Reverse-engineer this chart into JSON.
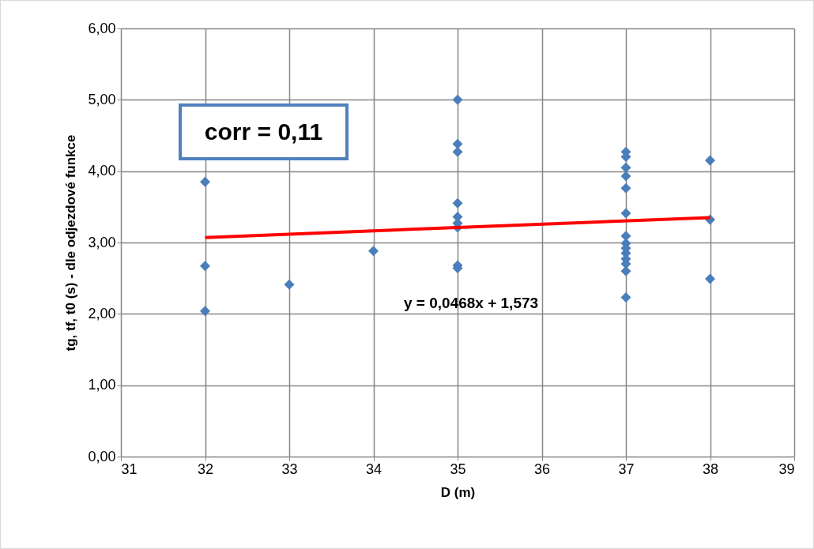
{
  "chart_data": {
    "type": "scatter",
    "xlabel": "D (m)",
    "ylabel": "tg, tf, t0 (s) - dle odjezdové funkce",
    "xlim": [
      31,
      39
    ],
    "xticks": [
      31,
      32,
      33,
      34,
      35,
      36,
      37,
      38,
      39
    ],
    "ylim": [
      0,
      6
    ],
    "yticks": [
      {
        "value": 0,
        "label": "0,00"
      },
      {
        "value": 1,
        "label": "1,00"
      },
      {
        "value": 2,
        "label": "2,00"
      },
      {
        "value": 3,
        "label": "3,00"
      },
      {
        "value": 4,
        "label": "4,00"
      },
      {
        "value": 5,
        "label": "5,00"
      },
      {
        "value": 6,
        "label": "6,00"
      }
    ],
    "grid": true,
    "series": [
      {
        "marker": "diamond",
        "color": "#4a7ebb",
        "x": [
          32,
          32,
          32,
          33,
          34,
          35,
          35,
          35,
          35,
          35,
          35,
          35,
          35,
          35,
          37,
          37,
          37,
          37,
          37,
          37,
          37,
          37,
          37,
          37,
          37,
          37,
          37,
          37,
          38,
          38,
          38
        ],
        "values": [
          3.85,
          2.67,
          2.04,
          2.41,
          2.88,
          5.0,
          4.38,
          4.27,
          3.55,
          3.36,
          3.27,
          3.21,
          2.68,
          2.64,
          4.27,
          4.2,
          4.05,
          3.93,
          3.76,
          3.41,
          3.09,
          2.99,
          2.92,
          2.85,
          2.77,
          2.7,
          2.6,
          2.23,
          4.15,
          3.32,
          2.49
        ]
      },
      {
        "type": "line",
        "color": "#ff0000",
        "x": [
          32,
          38
        ],
        "values": [
          3.07,
          3.35
        ]
      }
    ],
    "annotations": [
      "corr = 0,11",
      "y = 0,0468x + 1,573"
    ]
  }
}
